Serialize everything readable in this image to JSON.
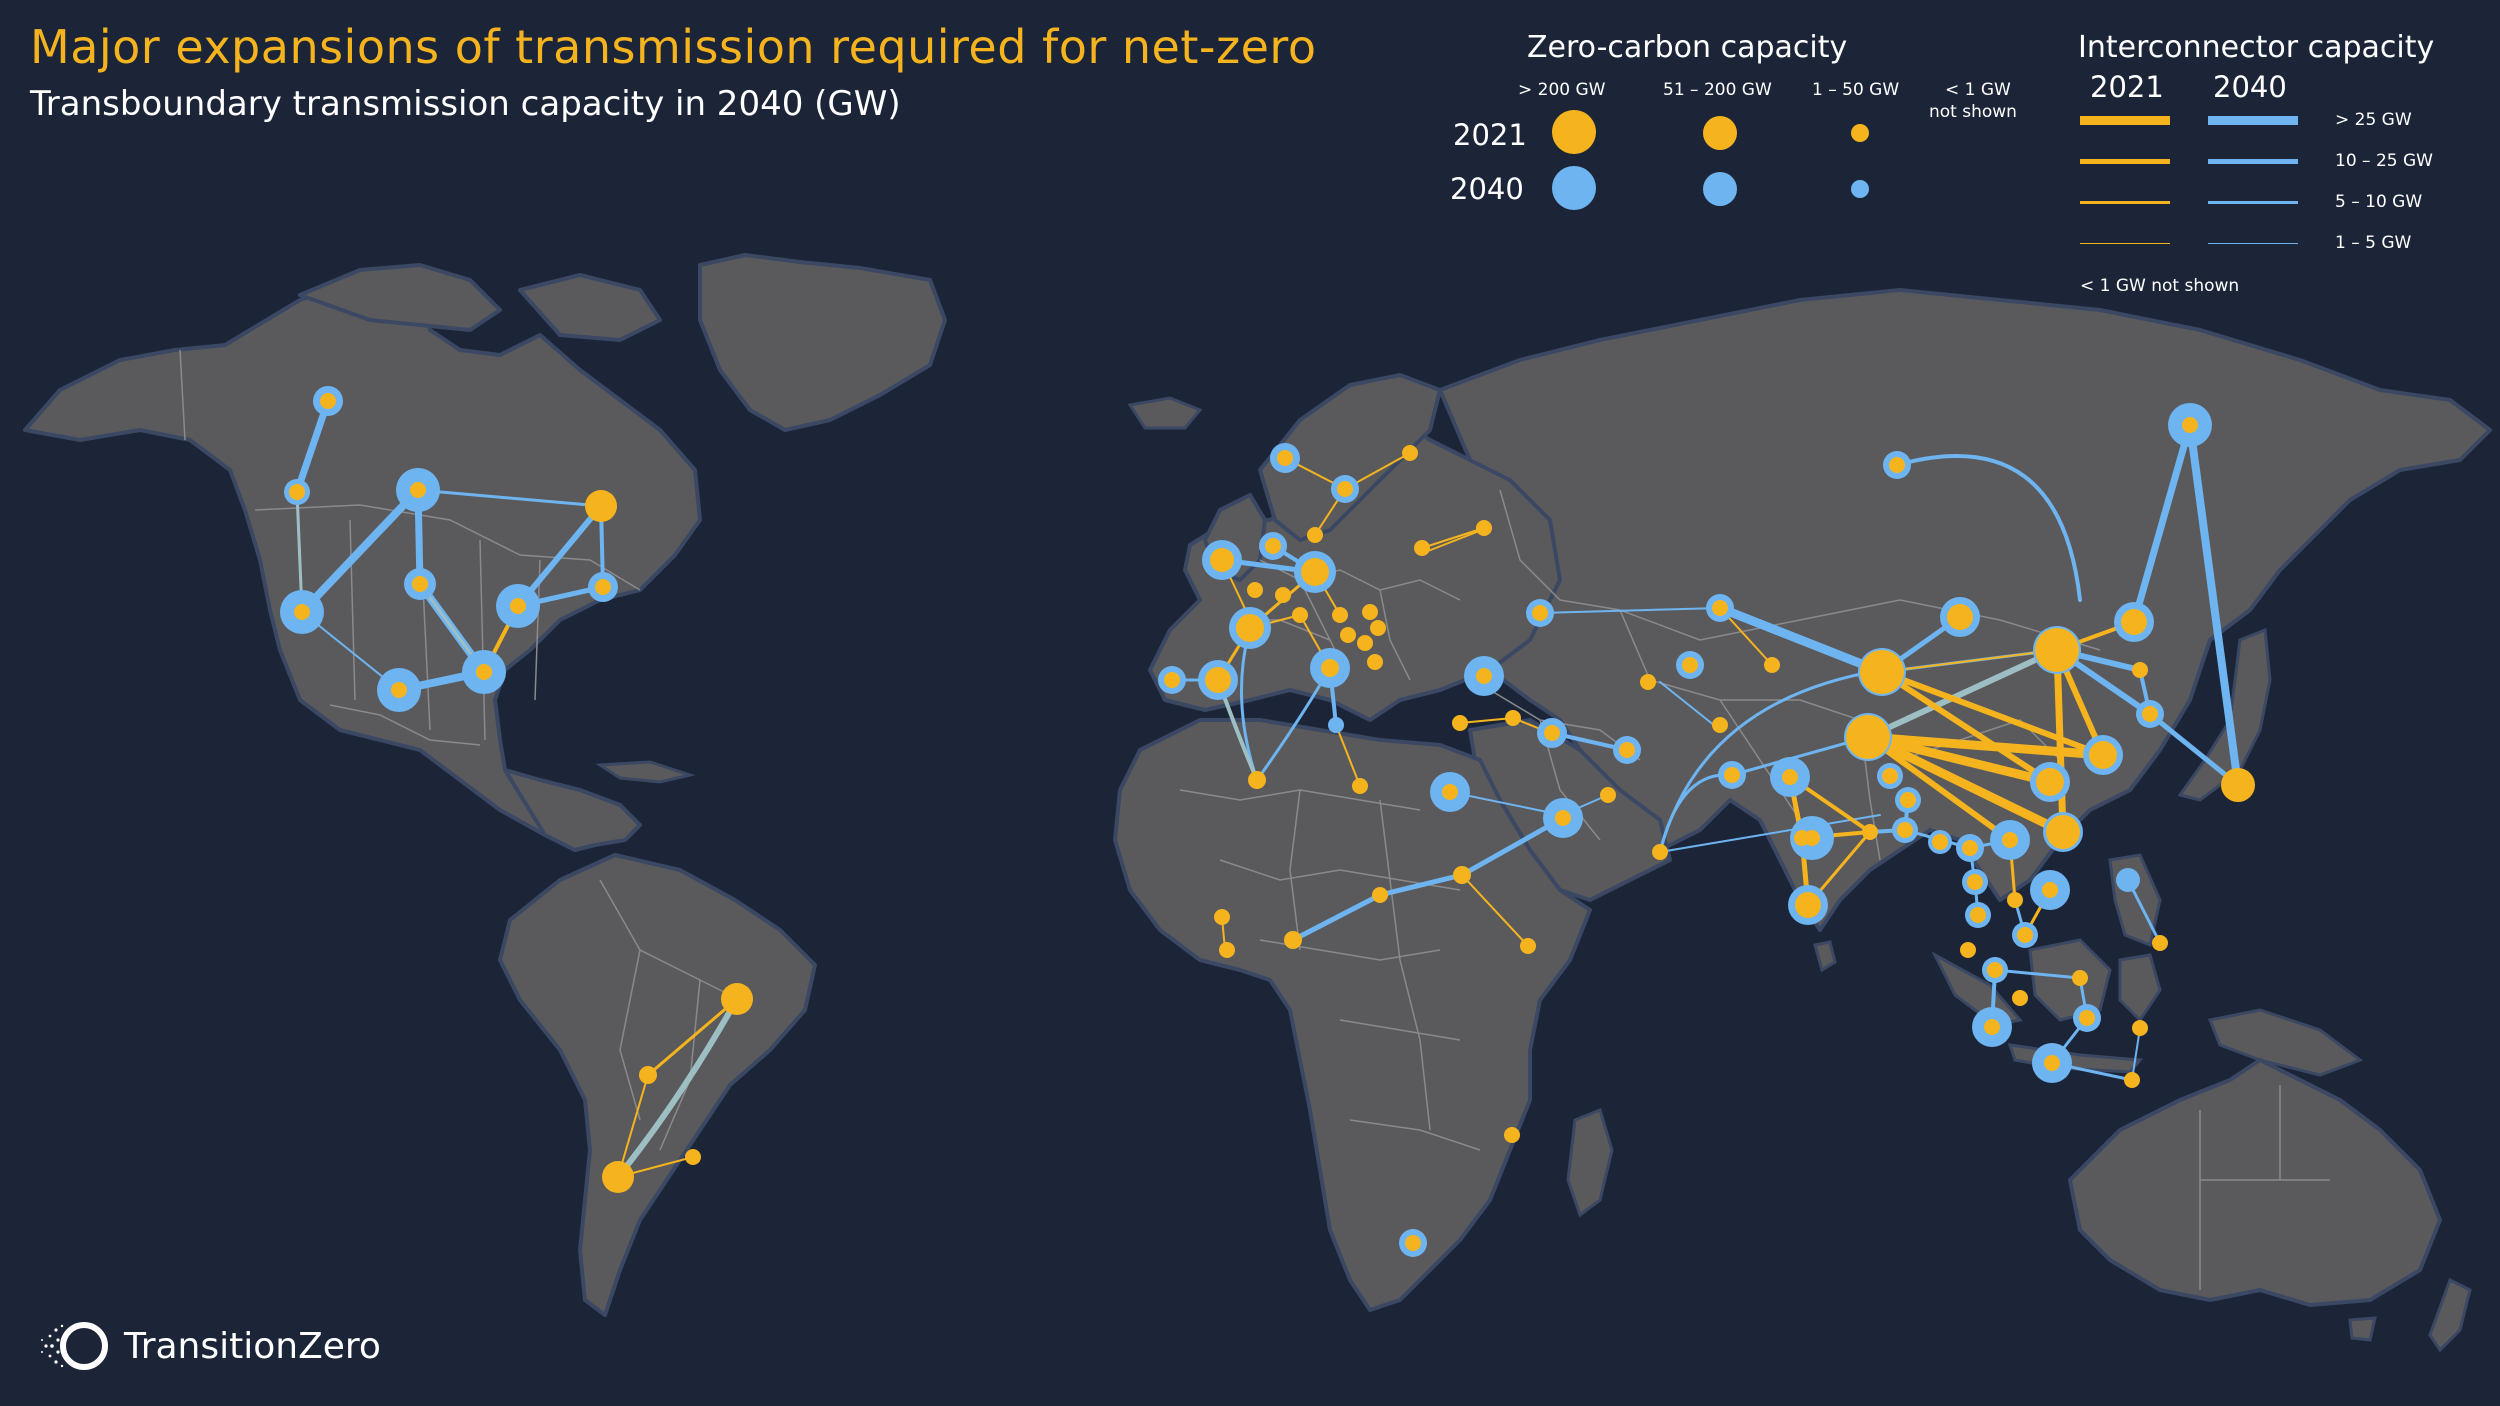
{
  "title": "Major expansions of transmission required for net-zero",
  "subtitle": "Transboundary transmission capacity in 2040 (GW)",
  "colors": {
    "background": "#1c2538",
    "land": "#5a5a5c",
    "border": "#8a8a8d",
    "coast": "#3b4863",
    "y2021": "#f5b41e",
    "y2040": "#6eb4f0",
    "mixed": "#9dbfc4"
  },
  "legend": {
    "capacity": {
      "heading": "Zero-carbon capacity",
      "ranges": [
        "> 200 GW",
        "51 – 200 GW",
        "1 – 50 GW"
      ],
      "not_shown": [
        "< 1 GW",
        "not shown"
      ],
      "years": [
        "2021",
        "2040"
      ]
    },
    "interconnector": {
      "heading": "Interconnector capacity",
      "years": [
        "2021",
        "2040"
      ],
      "ranges": [
        "> 25 GW",
        "10 – 25 GW",
        "5 – 10 GW",
        "1 – 5 GW"
      ],
      "not_shown": "< 1 GW not shown"
    }
  },
  "brand": {
    "name": "TransitionZero",
    "icon": "brand-ring-icon"
  }
}
